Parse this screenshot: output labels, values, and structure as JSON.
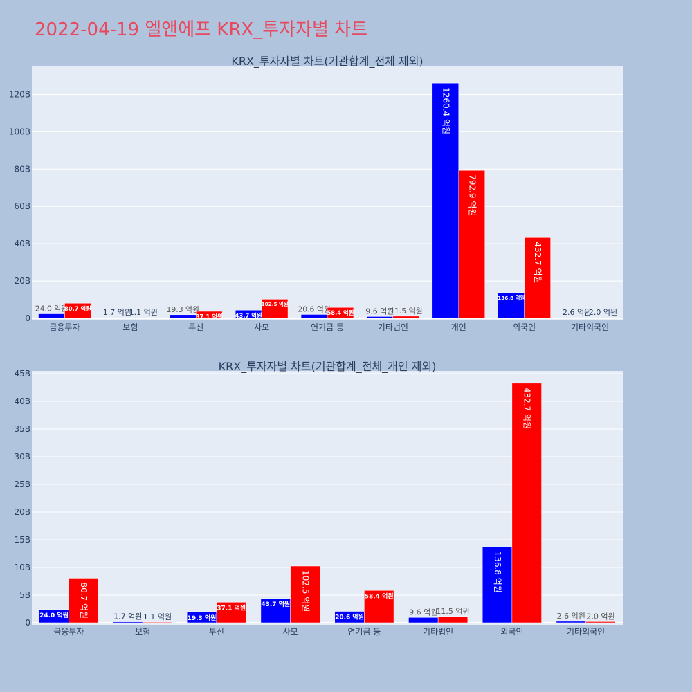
{
  "page_title": "2022-04-19 엘앤에프 KRX_투자자별 차트",
  "colors": {
    "series_a": "#0000ff",
    "series_b": "#ff0000",
    "plot_bg": "#e5ecf6",
    "page_bg": "#b0c4de",
    "title": "#e8495f"
  },
  "chart_data": [
    {
      "type": "bar",
      "title": "KRX_투자자별 차트(기관합계_전체 제외)",
      "categories": [
        "금융투자",
        "보험",
        "투신",
        "사모",
        "연기금 등",
        "기타법인",
        "개인",
        "외국인",
        "기타외국인"
      ],
      "series": [
        {
          "values": [
            2.4,
            0.17,
            1.93,
            4.37,
            2.06,
            0.96,
            126.04,
            13.68,
            0.26
          ],
          "labels": [
            "24.0 억원",
            "1.7 억원",
            "19.3 억원",
            "43.7 억원",
            "20.6 억원",
            "9.6 억원",
            "1260.4 억원",
            "136.8 억원",
            "2.6 억원"
          ]
        },
        {
          "values": [
            8.07,
            0.11,
            3.71,
            10.25,
            5.84,
            1.15,
            79.29,
            43.27,
            0.2
          ],
          "labels": [
            "80.7 억원",
            "1.1 억원",
            "37.1 억원",
            "102.5 억원",
            "58.4 억원",
            "11.5 억원",
            "792.9 억원",
            "432.7 억원",
            "2.0 억원"
          ]
        }
      ],
      "ylim": [
        0,
        135
      ],
      "yticks": [
        0,
        20,
        40,
        60,
        80,
        100,
        120
      ],
      "ytick_labels": [
        "0",
        "20B",
        "40B",
        "60B",
        "80B",
        "100B",
        "120B"
      ],
      "grid": true
    },
    {
      "type": "bar",
      "title": "KRX_투자자별 차트(기관합계_전체_개인 제외)",
      "categories": [
        "금융투자",
        "보험",
        "투신",
        "사모",
        "연기금 등",
        "기타법인",
        "외국인",
        "기타외국인"
      ],
      "series": [
        {
          "values": [
            2.4,
            0.17,
            1.93,
            4.37,
            2.06,
            0.96,
            13.68,
            0.26
          ],
          "labels": [
            "24.0 억원",
            "1.7 억원",
            "19.3 억원",
            "43.7 억원",
            "20.6 억원",
            "9.6 억원",
            "136.8 억원",
            "2.6 억원"
          ]
        },
        {
          "values": [
            8.07,
            0.11,
            3.71,
            10.25,
            5.84,
            1.15,
            43.27,
            0.2
          ],
          "labels": [
            "80.7 억원",
            "1.1 억원",
            "37.1 억원",
            "102.5 억원",
            "58.4 억원",
            "11.5 억원",
            "432.7 억원",
            "2.0 억원"
          ]
        }
      ],
      "ylim": [
        0,
        45.5
      ],
      "yticks": [
        0,
        5,
        10,
        15,
        20,
        25,
        30,
        35,
        40,
        45
      ],
      "ytick_labels": [
        "0",
        "5B",
        "10B",
        "15B",
        "20B",
        "25B",
        "30B",
        "35B",
        "40B",
        "45B"
      ],
      "grid": true
    }
  ]
}
